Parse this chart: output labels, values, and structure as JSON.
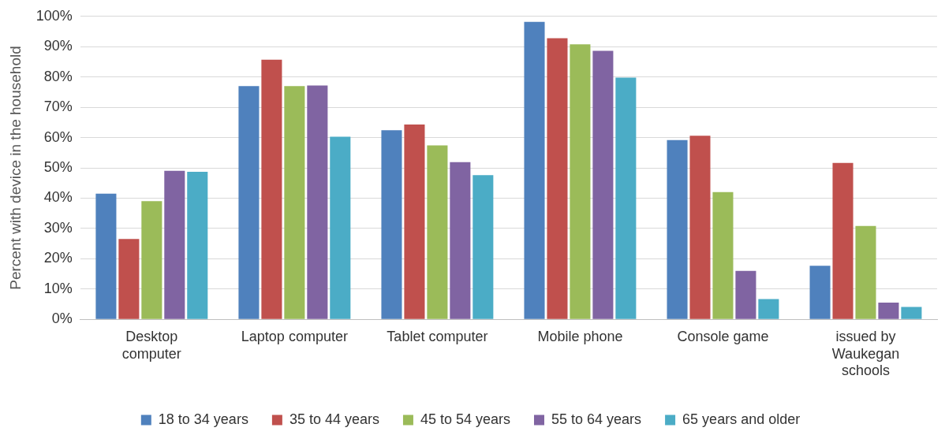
{
  "chart_data": {
    "type": "bar",
    "ylabel": "Percent with device in the household",
    "categories": [
      "Desktop computer",
      "Laptop computer",
      "Tablet computer",
      "Mobile phone",
      "Console game",
      "issued by Waukegan schools"
    ],
    "series": [
      {
        "name": "18 to 34 years",
        "color": "#4f81bd",
        "values": [
          41.5,
          77,
          62.4,
          98.2,
          59.2,
          17.7
        ]
      },
      {
        "name": "35 to 44 years",
        "color": "#c0504d",
        "values": [
          26.5,
          85.7,
          64.3,
          92.8,
          60.6,
          51.6
        ]
      },
      {
        "name": "45 to 54 years",
        "color": "#9bbb59",
        "values": [
          39,
          77,
          57.4,
          90.8,
          42,
          30.8
        ]
      },
      {
        "name": "55 to 64 years",
        "color": "#8064a2",
        "values": [
          49,
          77.2,
          51.9,
          88.6,
          16,
          5.5
        ]
      },
      {
        "name": "65 years and older",
        "color": "#4bacc6",
        "values": [
          48.7,
          60.3,
          47.6,
          79.8,
          6.7,
          4.1
        ]
      }
    ],
    "ylim": [
      0,
      100
    ],
    "yticks": [
      {
        "value": 0,
        "label": "0%"
      },
      {
        "value": 10,
        "label": "10%"
      },
      {
        "value": 20,
        "label": "20%"
      },
      {
        "value": 30,
        "label": "30%"
      },
      {
        "value": 40,
        "label": "40%"
      },
      {
        "value": 50,
        "label": "50%"
      },
      {
        "value": 60,
        "label": "60%"
      },
      {
        "value": 70,
        "label": "70%"
      },
      {
        "value": 80,
        "label": "80%"
      },
      {
        "value": 90,
        "label": "90%"
      },
      {
        "value": 100,
        "label": "100%"
      }
    ],
    "grid": "y",
    "legend": "bottom"
  }
}
